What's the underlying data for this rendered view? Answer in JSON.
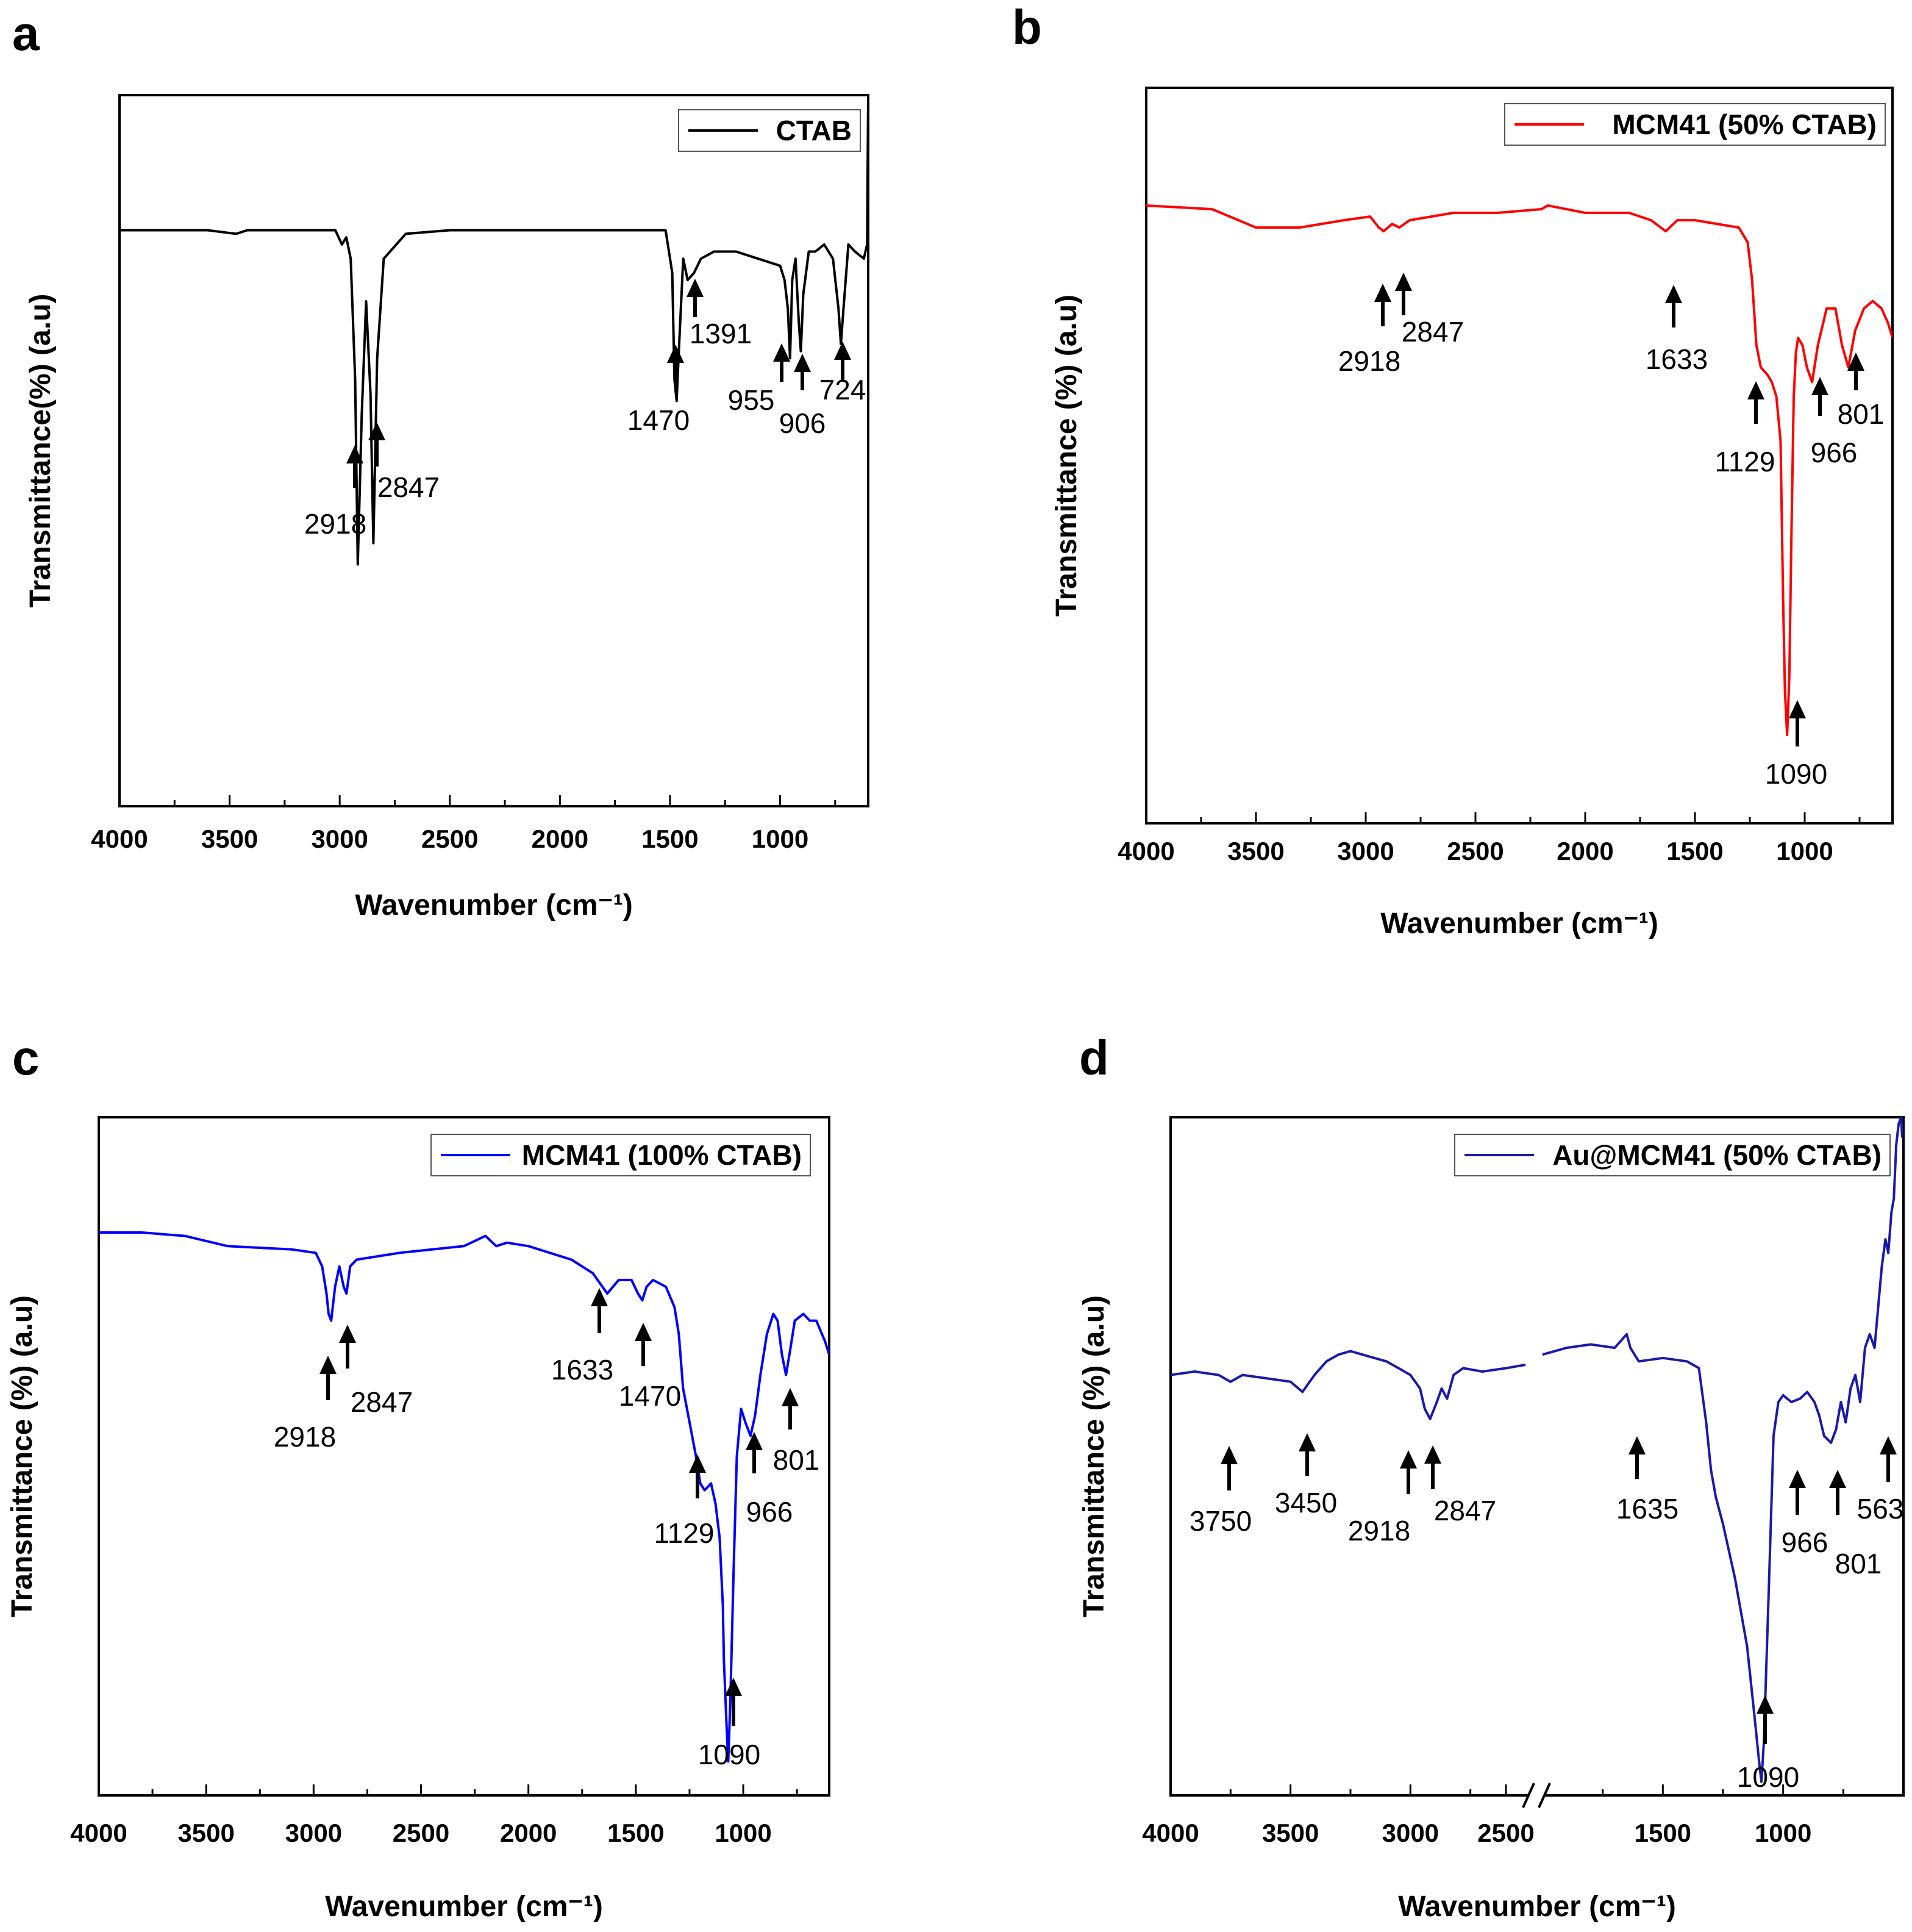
{
  "chart_data": [
    {
      "panel": "a",
      "type": "line",
      "title": "",
      "xlabel": "Wavenumber (cm⁻¹)",
      "ylabel": "Transmittance(%) (a.u)",
      "xlim": [
        4000,
        600
      ],
      "ylim": [
        0,
        100
      ],
      "xticks": [
        "4000",
        "3500",
        "3000",
        "2500",
        "2000",
        "1500",
        "1000"
      ],
      "xtick_values": [
        4000,
        3500,
        3000,
        2500,
        2000,
        1500,
        1000
      ],
      "legend": {
        "label": "CTAB",
        "color": "#000000",
        "position": "top-right"
      },
      "series": [
        {
          "name": "CTAB",
          "color": "#000000",
          "x": [
            4000,
            3600,
            3470,
            3420,
            3200,
            3020,
            2990,
            2970,
            2950,
            2930,
            2918,
            2900,
            2880,
            2860,
            2847,
            2830,
            2800,
            2700,
            2500,
            2000,
            1600,
            1520,
            1490,
            1480,
            1470,
            1460,
            1440,
            1420,
            1391,
            1360,
            1300,
            1200,
            1100,
            1000,
            980,
            965,
            955,
            945,
            930,
            915,
            906,
            895,
            870,
            840,
            800,
            760,
            735,
            724,
            712,
            690,
            660,
            620,
            605,
            600
          ],
          "y": [
            81,
            81,
            80.5,
            81,
            81,
            81,
            79,
            80,
            77,
            60,
            34,
            55,
            71,
            58,
            37,
            63,
            77,
            80.5,
            81,
            81,
            81,
            81,
            75,
            60,
            57,
            64,
            77,
            74,
            75,
            77,
            78,
            78,
            77,
            76,
            74,
            70,
            63,
            74,
            77,
            68,
            64,
            72,
            78,
            78,
            79,
            77,
            70,
            65,
            70,
            79,
            78,
            77,
            79,
            100
          ]
        }
      ],
      "annotations": [
        {
          "text": "2918",
          "x": 2918
        },
        {
          "text": "2847",
          "x": 2847
        },
        {
          "text": "1470",
          "x": 1470
        },
        {
          "text": "1391",
          "x": 1391
        },
        {
          "text": "955",
          "x": 955
        },
        {
          "text": "906",
          "x": 906
        },
        {
          "text": "724",
          "x": 724
        }
      ]
    },
    {
      "panel": "b",
      "type": "line",
      "title": "",
      "xlabel": "Wavenumber (cm⁻¹)",
      "ylabel": "Transmittance (%) (a.u)",
      "xlim": [
        4000,
        600
      ],
      "ylim": [
        0,
        100
      ],
      "xticks": [
        "4000",
        "3500",
        "3000",
        "2500",
        "2000",
        "1500",
        "1000"
      ],
      "xtick_values": [
        4000,
        3500,
        3000,
        2500,
        2000,
        1500,
        1000
      ],
      "legend": {
        "label": "MCM41 (50% CTAB)",
        "color": "#ff0000",
        "position": "top-right"
      },
      "series": [
        {
          "name": "MCM41 (50% CTAB)",
          "color": "#ff0000",
          "x": [
            4000,
            3700,
            3500,
            3300,
            3100,
            2980,
            2940,
            2918,
            2880,
            2847,
            2800,
            2600,
            2400,
            2200,
            2170,
            2000,
            1800,
            1700,
            1633,
            1580,
            1500,
            1300,
            1260,
            1240,
            1220,
            1200,
            1170,
            1150,
            1129,
            1110,
            1098,
            1090,
            1080,
            1070,
            1060,
            1050,
            1040,
            1030,
            1010,
            990,
            966,
            940,
            900,
            860,
            830,
            801,
            770,
            730,
            690,
            650,
            620,
            600
          ],
          "y": [
            84,
            83.5,
            81,
            81,
            82,
            82.5,
            81,
            80.5,
            81.5,
            81,
            82,
            83,
            83,
            83.5,
            84,
            83,
            83,
            82,
            80.5,
            82,
            82,
            81,
            79,
            74,
            65,
            62,
            61,
            60,
            58,
            52,
            30,
            18,
            12,
            20,
            40,
            58,
            64,
            66,
            65,
            62,
            60,
            65,
            70,
            70,
            65,
            62,
            67,
            70,
            71,
            70,
            68,
            66
          ]
        }
      ],
      "annotations": [
        {
          "text": "2918",
          "x": 2918
        },
        {
          "text": "2847",
          "x": 2847
        },
        {
          "text": "1633",
          "x": 1633
        },
        {
          "text": "1129",
          "x": 1129
        },
        {
          "text": "966",
          "x": 966
        },
        {
          "text": "801",
          "x": 801
        },
        {
          "text": "1090",
          "x": 1090
        }
      ]
    },
    {
      "panel": "c",
      "type": "line",
      "title": "",
      "xlabel": "Wavenumber (cm⁻¹)",
      "ylabel": "Transmittance (%) (a.u)",
      "xlim": [
        4000,
        600
      ],
      "ylim": [
        0,
        100
      ],
      "xticks": [
        "4000",
        "3500",
        "3000",
        "2500",
        "2000",
        "1500",
        "1000"
      ],
      "xtick_values": [
        4000,
        3500,
        3000,
        2500,
        2000,
        1500,
        1000
      ],
      "legend": {
        "label": "MCM41 (100% CTAB)",
        "color": "#0000ff",
        "position": "top-right"
      },
      "series": [
        {
          "name": "MCM41 (100% CTAB)",
          "color": "#0000ff",
          "x": [
            4000,
            3800,
            3600,
            3400,
            3100,
            2990,
            2960,
            2940,
            2930,
            2918,
            2900,
            2880,
            2860,
            2847,
            2830,
            2800,
            2600,
            2300,
            2200,
            2150,
            2100,
            2000,
            1900,
            1800,
            1700,
            1633,
            1580,
            1520,
            1490,
            1470,
            1450,
            1420,
            1360,
            1320,
            1300,
            1280,
            1250,
            1220,
            1200,
            1180,
            1150,
            1129,
            1110,
            1095,
            1090,
            1080,
            1070,
            1060,
            1045,
            1030,
            1010,
            990,
            966,
            945,
            920,
            890,
            860,
            840,
            820,
            801,
            780,
            760,
            720,
            690,
            660,
            620,
            600
          ],
          "y": [
            83,
            83,
            82.5,
            81,
            80.5,
            80,
            78,
            74,
            71,
            70,
            75,
            78,
            75,
            74,
            78,
            79,
            80,
            81,
            82.5,
            81,
            81.5,
            81,
            80,
            79,
            77,
            74,
            76,
            76,
            74,
            73,
            75,
            76,
            75,
            72,
            68,
            60,
            55,
            50,
            46,
            45,
            46,
            43,
            38,
            28,
            20,
            12,
            5,
            14,
            33,
            50,
            57,
            55,
            53,
            56,
            62,
            68,
            71,
            70,
            65,
            62,
            66,
            70,
            71,
            70,
            70,
            67,
            65
          ]
        }
      ],
      "annotations": [
        {
          "text": "2918",
          "x": 2918
        },
        {
          "text": "2847",
          "x": 2847
        },
        {
          "text": "1633",
          "x": 1633
        },
        {
          "text": "1470",
          "x": 1470
        },
        {
          "text": "1129",
          "x": 1129
        },
        {
          "text": "966",
          "x": 966
        },
        {
          "text": "801",
          "x": 801
        },
        {
          "text": "1090",
          "x": 1090
        }
      ]
    },
    {
      "panel": "d",
      "type": "line",
      "title": "",
      "xlabel": "Wavenumber (cm⁻¹)",
      "ylabel": "Transmittance (%) (a.u)",
      "xlim": [
        4000,
        500
      ],
      "axis_break": "2500",
      "ylim": [
        0,
        100
      ],
      "xticks": [
        "4000",
        "3500",
        "3000",
        "2500",
        "1500",
        "1000"
      ],
      "legend": {
        "label": "Au@MCM41 (50% CTAB)",
        "color": "#1a1aaa",
        "position": "top-right"
      },
      "series": [
        {
          "name": "Au@MCM41 (50% CTAB) left segment",
          "color": "#1a1aaa",
          "x": [
            4000,
            3900,
            3800,
            3750,
            3700,
            3600,
            3500,
            3450,
            3400,
            3350,
            3300,
            3250,
            3200,
            3150,
            3100,
            3050,
            3000,
            2960,
            2940,
            2918,
            2890,
            2870,
            2847,
            2820,
            2780,
            2700,
            2600,
            2520
          ],
          "y": [
            62,
            62.5,
            62,
            61,
            62,
            61.5,
            61,
            59.5,
            62,
            64,
            65,
            65.5,
            65,
            64.5,
            64,
            63,
            62,
            60,
            57,
            55.5,
            58,
            60,
            58.5,
            62,
            63,
            62.5,
            63,
            63.5
          ]
        },
        {
          "name": "Au@MCM41 (50% CTAB) right segment",
          "color": "#1a1aaa",
          "x": [
            2000,
            1900,
            1800,
            1700,
            1650,
            1635,
            1600,
            1500,
            1400,
            1350,
            1320,
            1300,
            1280,
            1250,
            1200,
            1150,
            1120,
            1100,
            1090,
            1080,
            1060,
            1040,
            1020,
            1000,
            966,
            930,
            900,
            870,
            850,
            830,
            801,
            780,
            760,
            740,
            720,
            700,
            680,
            660,
            640,
            620,
            600,
            590,
            575,
            563,
            550,
            540,
            530,
            520,
            510,
            505
          ],
          "y": [
            65,
            66,
            66.5,
            66,
            68,
            66,
            64,
            64.5,
            64,
            63,
            55,
            48,
            44,
            40,
            32,
            22,
            12,
            5,
            2,
            8,
            30,
            53,
            58,
            59,
            58,
            58.5,
            59.5,
            58,
            56,
            53,
            52,
            54,
            58,
            55,
            60,
            62,
            58,
            66,
            68,
            66,
            74,
            78,
            82,
            80,
            86,
            88,
            96,
            99,
            100,
            97
          ]
        }
      ],
      "annotations": [
        {
          "text": "3750",
          "x": 3750
        },
        {
          "text": "3450",
          "x": 3450
        },
        {
          "text": "2918",
          "x": 2918
        },
        {
          "text": "2847",
          "x": 2847
        },
        {
          "text": "1635",
          "x": 1635
        },
        {
          "text": "966",
          "x": 966
        },
        {
          "text": "801",
          "x": 801
        },
        {
          "text": "563",
          "x": 563
        },
        {
          "text": "1090",
          "x": 1090
        }
      ]
    }
  ]
}
